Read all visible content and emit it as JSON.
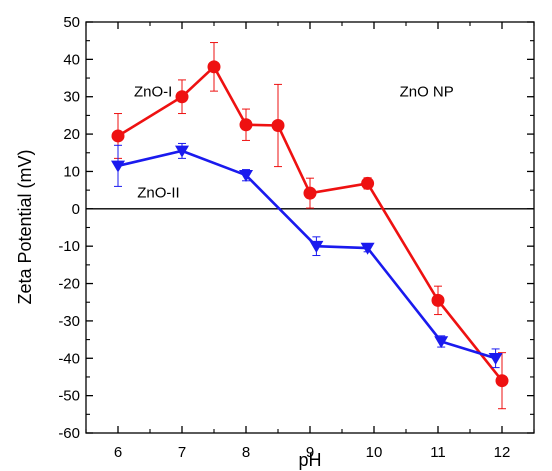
{
  "chart_data": {
    "type": "line",
    "title": "",
    "xlabel": "pH",
    "ylabel": "Zeta Potential (mV)",
    "xlim": [
      5.5,
      12.5
    ],
    "ylim": [
      -60,
      50
    ],
    "x_ticks": [
      6,
      7,
      8,
      9,
      10,
      11,
      12
    ],
    "y_ticks": [
      -60,
      -50,
      -40,
      -30,
      -20,
      -10,
      0,
      10,
      20,
      30,
      40,
      50
    ],
    "zero_line": 0,
    "grid": false,
    "annotations": [
      {
        "text": "ZnO-I",
        "x": 6.25,
        "y": 30
      },
      {
        "text": "ZnO-II",
        "x": 6.3,
        "y": 3
      },
      {
        "text": "ZnO NP",
        "x": 10.4,
        "y": 30
      }
    ],
    "series": [
      {
        "color": "#ee1111",
        "marker": "circle",
        "x": [
          6,
          7,
          7.5,
          8,
          8.5,
          9,
          9.9,
          11,
          12
        ],
        "y": [
          19.5,
          30,
          38,
          22.5,
          22.3,
          4.2,
          6.8,
          -24.5,
          -46
        ],
        "err": [
          6,
          4.5,
          6.5,
          4.2,
          11,
          4,
          1.5,
          3.8,
          7.5
        ]
      },
      {
        "color": "#1a1aee",
        "marker": "triangle-down",
        "x": [
          6,
          7,
          8,
          9.1,
          9.9,
          11.05,
          11.9
        ],
        "y": [
          11.5,
          15.5,
          9,
          -10,
          -10.5,
          -35.5,
          -40
        ],
        "err": [
          5.5,
          2,
          1.5,
          2.5,
          1,
          1.5,
          2.5
        ]
      }
    ]
  }
}
